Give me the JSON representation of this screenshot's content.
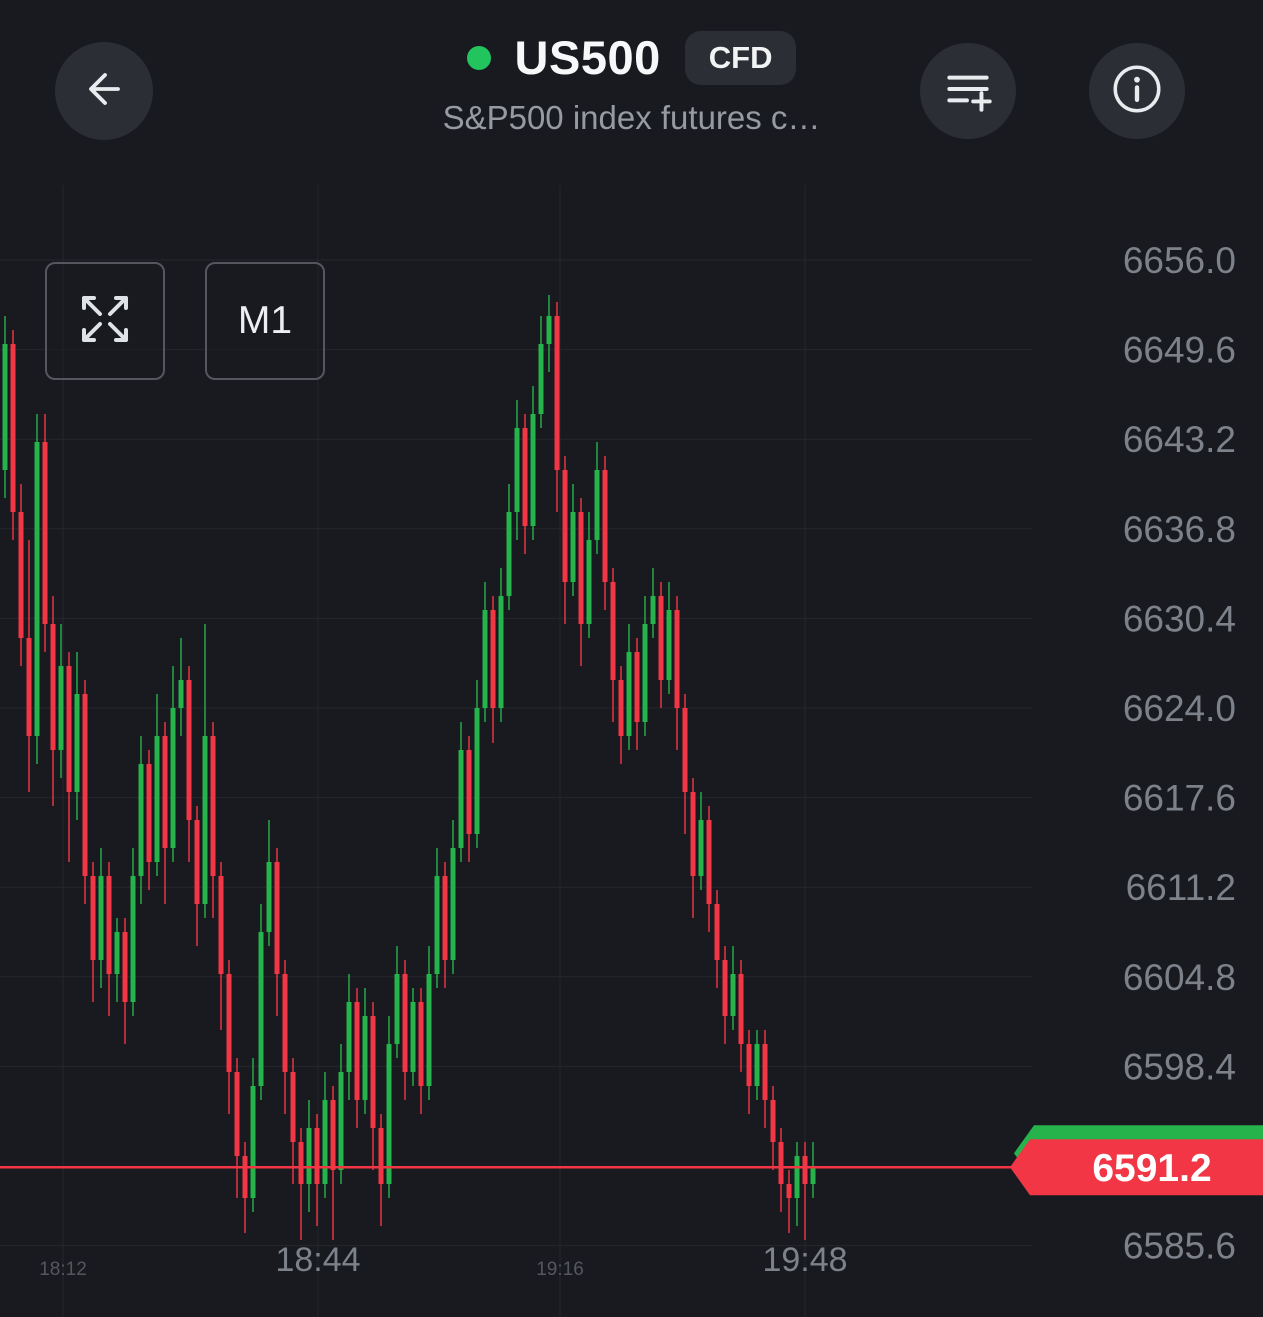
{
  "header": {
    "symbol": "US500",
    "instrument_badge": "CFD",
    "subtitle": "S&P500 index futures c…",
    "status_dot_color": "#21c45d"
  },
  "toolbar": {
    "timeframe_label": "M1"
  },
  "chart_data": {
    "type": "candlestick",
    "symbol": "US500",
    "interval": "M1",
    "current_price": 6591.2,
    "current_price_label": "6591.2",
    "ylim": [
      6583,
      6660
    ],
    "y_axis_labels": [
      "6656.0",
      "6649.6",
      "6643.2",
      "6636.8",
      "6630.4",
      "6624.0",
      "6617.6",
      "6611.2",
      "6604.8",
      "6598.4",
      "6585.6"
    ],
    "x_axis_labels": [
      {
        "label": "18:12",
        "minor": true
      },
      {
        "label": "18:44",
        "minor": false
      },
      {
        "label": "19:16",
        "minor": true
      },
      {
        "label": "19:48",
        "minor": false
      }
    ],
    "colors": {
      "up": "#26b34b",
      "down": "#f23645",
      "grid": "#24272d",
      "axis_text": "#7d818a",
      "axis_text_minor": "#54575e",
      "price_tag_up": "#26b34b",
      "price_tag_down": "#f23645"
    },
    "ohlc": [
      [
        6641,
        6652,
        6639,
        6650
      ],
      [
        6650,
        6651,
        6636,
        6638
      ],
      [
        6638,
        6640,
        6627,
        6629
      ],
      [
        6629,
        6636,
        6618,
        6622
      ],
      [
        6622,
        6645,
        6620,
        6643
      ],
      [
        6643,
        6645,
        6628,
        6630
      ],
      [
        6630,
        6632,
        6617,
        6621
      ],
      [
        6621,
        6630,
        6619,
        6627
      ],
      [
        6627,
        6628,
        6613,
        6618
      ],
      [
        6618,
        6628,
        6616,
        6625
      ],
      [
        6625,
        6626,
        6610,
        6612
      ],
      [
        6612,
        6613,
        6603,
        6606
      ],
      [
        6606,
        6614,
        6604,
        6612
      ],
      [
        6612,
        6613,
        6602,
        6605
      ],
      [
        6605,
        6609,
        6603,
        6608
      ],
      [
        6608,
        6609,
        6600,
        6603
      ],
      [
        6603,
        6614,
        6602,
        6612
      ],
      [
        6612,
        6622,
        6610,
        6620
      ],
      [
        6620,
        6621,
        6611,
        6613
      ],
      [
        6613,
        6625,
        6612,
        6622
      ],
      [
        6622,
        6623,
        6610,
        6614
      ],
      [
        6614,
        6627,
        6613,
        6624
      ],
      [
        6624,
        6629,
        6622,
        6626
      ],
      [
        6626,
        6627,
        6613,
        6616
      ],
      [
        6616,
        6617,
        6607,
        6610
      ],
      [
        6610,
        6630,
        6609,
        6622
      ],
      [
        6622,
        6623,
        6609,
        6612
      ],
      [
        6612,
        6613,
        6601,
        6605
      ],
      [
        6605,
        6606,
        6595,
        6598
      ],
      [
        6598,
        6599,
        6589,
        6592
      ],
      [
        6592,
        6593,
        6586.5,
        6589
      ],
      [
        6589,
        6599,
        6588,
        6597
      ],
      [
        6597,
        6610,
        6596,
        6608
      ],
      [
        6608,
        6616,
        6607,
        6613
      ],
      [
        6613,
        6614,
        6602,
        6605
      ],
      [
        6605,
        6606,
        6595,
        6598
      ],
      [
        6598,
        6599,
        6590,
        6593
      ],
      [
        6593,
        6594,
        6586,
        6590
      ],
      [
        6590,
        6596,
        6588,
        6594
      ],
      [
        6594,
        6595,
        6587,
        6590
      ],
      [
        6590,
        6598,
        6589,
        6596
      ],
      [
        6596,
        6597,
        6586,
        6591
      ],
      [
        6591,
        6600,
        6590,
        6598
      ],
      [
        6598,
        6605,
        6596,
        6603
      ],
      [
        6603,
        6604,
        6594,
        6596
      ],
      [
        6596,
        6604,
        6595,
        6602
      ],
      [
        6602,
        6603,
        6591,
        6594
      ],
      [
        6594,
        6595,
        6587,
        6590
      ],
      [
        6590,
        6602,
        6589,
        6600
      ],
      [
        6600,
        6607,
        6599,
        6605
      ],
      [
        6605,
        6606,
        6596,
        6598
      ],
      [
        6598,
        6604,
        6597,
        6603
      ],
      [
        6603,
        6604,
        6595,
        6597
      ],
      [
        6597,
        6607,
        6596,
        6605
      ],
      [
        6605,
        6614,
        6604,
        6612
      ],
      [
        6612,
        6613,
        6604,
        6606
      ],
      [
        6606,
        6616,
        6605,
        6614
      ],
      [
        6614,
        6623,
        6613,
        6621
      ],
      [
        6621,
        6622,
        6613,
        6615
      ],
      [
        6615,
        6626,
        6614,
        6624
      ],
      [
        6624,
        6633,
        6623,
        6631
      ],
      [
        6631,
        6632,
        6621.5,
        6624
      ],
      [
        6624,
        6634,
        6623,
        6632
      ],
      [
        6632,
        6640,
        6631,
        6638
      ],
      [
        6638,
        6646,
        6636,
        6644
      ],
      [
        6644,
        6645,
        6635,
        6637
      ],
      [
        6637,
        6647,
        6636,
        6645
      ],
      [
        6645,
        6652,
        6644,
        6650
      ],
      [
        6650,
        6653.5,
        6648,
        6652
      ],
      [
        6652,
        6653,
        6638,
        6641
      ],
      [
        6641,
        6642,
        6630,
        6633
      ],
      [
        6633,
        6640,
        6632,
        6638
      ],
      [
        6638,
        6639,
        6627,
        6630
      ],
      [
        6630,
        6638,
        6629,
        6636
      ],
      [
        6636,
        6643,
        6635,
        6641
      ],
      [
        6641,
        6642,
        6631,
        6633
      ],
      [
        6633,
        6634,
        6623,
        6626
      ],
      [
        6626,
        6627,
        6620,
        6622
      ],
      [
        6622,
        6630,
        6621,
        6628
      ],
      [
        6628,
        6629,
        6621,
        6623
      ],
      [
        6623,
        6632,
        6622,
        6630
      ],
      [
        6630,
        6634,
        6629,
        6632
      ],
      [
        6632,
        6633,
        6624,
        6626
      ],
      [
        6626,
        6633,
        6625,
        6631
      ],
      [
        6631,
        6632,
        6621,
        6624
      ],
      [
        6624,
        6625,
        6615,
        6618
      ],
      [
        6618,
        6619,
        6609,
        6612
      ],
      [
        6612,
        6618,
        6611,
        6616
      ],
      [
        6616,
        6617,
        6608,
        6610
      ],
      [
        6610,
        6611,
        6604,
        6606
      ],
      [
        6606,
        6607,
        6600,
        6602
      ],
      [
        6602,
        6607,
        6601,
        6605
      ],
      [
        6605,
        6606,
        6598,
        6600
      ],
      [
        6600,
        6601,
        6595,
        6597
      ],
      [
        6597,
        6601,
        6596,
        6600
      ],
      [
        6600,
        6601,
        6594,
        6596
      ],
      [
        6596,
        6597,
        6591,
        6593
      ],
      [
        6593,
        6594,
        6588,
        6590
      ],
      [
        6590,
        6591,
        6586.5,
        6589
      ],
      [
        6589,
        6593,
        6587,
        6592
      ],
      [
        6592,
        6593,
        6586,
        6590
      ],
      [
        6590,
        6593,
        6589,
        6591.2
      ]
    ]
  }
}
